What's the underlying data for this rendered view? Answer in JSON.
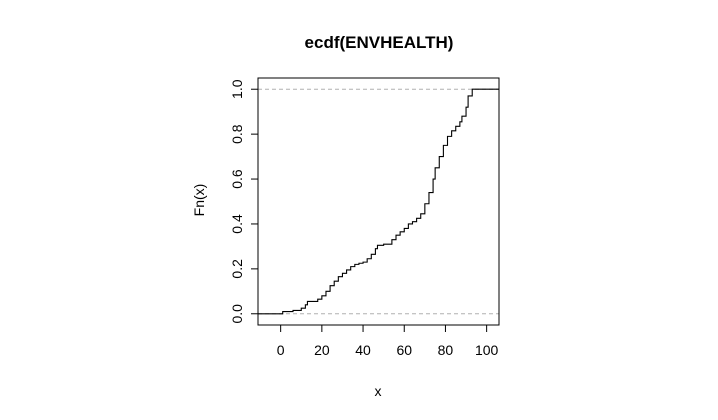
{
  "chart_data": {
    "type": "step",
    "title": "ecdf(ENVHEALTH)",
    "xlabel": "x",
    "ylabel": "Fn(x)",
    "xlim": [
      -11,
      106
    ],
    "ylim": [
      -0.05,
      1.05
    ],
    "x_ticks": [
      0,
      20,
      40,
      60,
      80,
      100
    ],
    "y_ticks": [
      0.0,
      0.2,
      0.4,
      0.6,
      0.8,
      1.0
    ],
    "x_tick_labels": [
      "0",
      "20",
      "40",
      "60",
      "80",
      "100"
    ],
    "y_tick_labels": [
      "0.0",
      "0.2",
      "0.4",
      "0.6",
      "0.8",
      "1.0"
    ],
    "reference_lines": [
      0,
      1
    ],
    "points": [
      [
        -11,
        0.0
      ],
      [
        1,
        0.01
      ],
      [
        6,
        0.015
      ],
      [
        10,
        0.025
      ],
      [
        12,
        0.04
      ],
      [
        13,
        0.055
      ],
      [
        18,
        0.065
      ],
      [
        20,
        0.08
      ],
      [
        22,
        0.1
      ],
      [
        24,
        0.125
      ],
      [
        26,
        0.145
      ],
      [
        28,
        0.165
      ],
      [
        30,
        0.18
      ],
      [
        32,
        0.195
      ],
      [
        34,
        0.21
      ],
      [
        36,
        0.22
      ],
      [
        38,
        0.225
      ],
      [
        40,
        0.23
      ],
      [
        42,
        0.245
      ],
      [
        44,
        0.265
      ],
      [
        46,
        0.29
      ],
      [
        47,
        0.305
      ],
      [
        50,
        0.31
      ],
      [
        54,
        0.33
      ],
      [
        56,
        0.35
      ],
      [
        58,
        0.365
      ],
      [
        60,
        0.38
      ],
      [
        62,
        0.4
      ],
      [
        64,
        0.41
      ],
      [
        66,
        0.425
      ],
      [
        68,
        0.445
      ],
      [
        70,
        0.49
      ],
      [
        72,
        0.54
      ],
      [
        74,
        0.6
      ],
      [
        75,
        0.65
      ],
      [
        77,
        0.7
      ],
      [
        79,
        0.75
      ],
      [
        81,
        0.79
      ],
      [
        83,
        0.815
      ],
      [
        85,
        0.835
      ],
      [
        87,
        0.855
      ],
      [
        88,
        0.88
      ],
      [
        90,
        0.92
      ],
      [
        91,
        0.97
      ],
      [
        93,
        1.0
      ],
      [
        106,
        1.0
      ]
    ]
  }
}
